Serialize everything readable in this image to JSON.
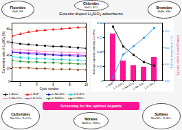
{
  "chart_data": [
    {
      "type": "line",
      "title": "Eutectic doped Li₄SiO₄ adsorbents",
      "annotations": [
        "Fluorides\nNaF, KF",
        "Chlorides\nNaCl, KCl",
        "Bromides\nNaBr, KBr",
        "Carbonates\nNa₂CO₃, K₂CO₃",
        "Nitrates\nNaNO₃, KNO₃",
        "Sulfates\nNa₂SO₄, K₂SO₄",
        "Screening for the optimal dopants"
      ],
      "xlabel": "Cycle number",
      "ylabel": "Conversion rate of Li₄SiO₄ (%)",
      "x": [
        1,
        2,
        3,
        4,
        5,
        6,
        7,
        8,
        9,
        10
      ],
      "series": [
        {
          "name": "L-Base",
          "color": "#000000",
          "marker": "square",
          "values": [
            60,
            58,
            57,
            56,
            55,
            54,
            54,
            53,
            52,
            51
          ]
        },
        {
          "name": "L-NaF",
          "color": "#ff0000",
          "marker": "triangle-up",
          "values": [
            70,
            73,
            76,
            78,
            79,
            80,
            81,
            82,
            83,
            84
          ]
        },
        {
          "name": "L-Na₂SO₄",
          "color": "#0000cd",
          "marker": "circle",
          "values": [
            45,
            44,
            43,
            42,
            41,
            41,
            40,
            40,
            39,
            39
          ]
        },
        {
          "name": "L-K₂SO₄",
          "color": "#00ced1",
          "marker": "diamond",
          "values": [
            38,
            37,
            36,
            35,
            35,
            34,
            34,
            33,
            33,
            32
          ]
        },
        {
          "name": "L-Na₂CO₃",
          "color": "#ff69b4",
          "marker": "plus",
          "values": [
            50,
            49,
            48,
            47,
            46,
            46,
            45,
            45,
            44,
            44
          ]
        },
        {
          "name": "L-K₂CO₃",
          "color": "#9400d3",
          "marker": "x",
          "values": [
            46,
            45,
            44,
            44,
            43,
            42,
            42,
            41,
            41,
            40
          ]
        },
        {
          "name": "L-NaNO₃",
          "color": "#228b22",
          "marker": "triangle-down",
          "values": [
            32,
            31,
            30,
            30,
            29,
            29,
            28,
            28,
            27,
            27
          ]
        },
        {
          "name": "L-KNO₃",
          "color": "#8b4513",
          "marker": "pentagon",
          "values": [
            22,
            21,
            21,
            20,
            20,
            19,
            19,
            19,
            18,
            18
          ]
        }
      ],
      "xlim": [
        1,
        10
      ],
      "xticks": [
        2,
        4,
        6,
        8,
        10
      ],
      "ylim": [
        0,
        90
      ],
      "yticks": [
        0,
        20,
        40,
        60,
        80
      ],
      "grid": false,
      "legend": "bottom"
    },
    {
      "type": "bar",
      "categories": [
        "L-NaF",
        "L-K₂CO₃",
        "L-Na₂CO₃",
        "L-Na₂SO₄",
        "L-K₂SO₄"
      ],
      "series": [
        {
          "type": "bar",
          "color": "#ff1493",
          "values": [
            0.13,
            0.055,
            0.042,
            0.038,
            0.065
          ]
        },
        {
          "type": "line",
          "color": "#000000",
          "marker": "square",
          "values": [
            0.15,
            0.095,
            0.072,
            0.052,
            0.042
          ]
        },
        {
          "type": "line",
          "color": "#1e90ff",
          "marker": "circle",
          "axis": "y2",
          "values": [
            420,
            560,
            610,
            660,
            720
          ]
        }
      ],
      "ylabel": "Average capacity (mmol/g CO₂/Pa)",
      "y2label": "Eutectic temperature (°C)",
      "annotations": [
        "melting point of single salt (°C)"
      ],
      "ylim": [
        0,
        0.16
      ],
      "yticks": [
        0,
        0.04,
        0.08,
        0.12,
        0.16
      ],
      "y2lim": [
        400,
        750
      ],
      "y2ticks": [
        400,
        500,
        600,
        700
      ],
      "grid": false
    }
  ]
}
